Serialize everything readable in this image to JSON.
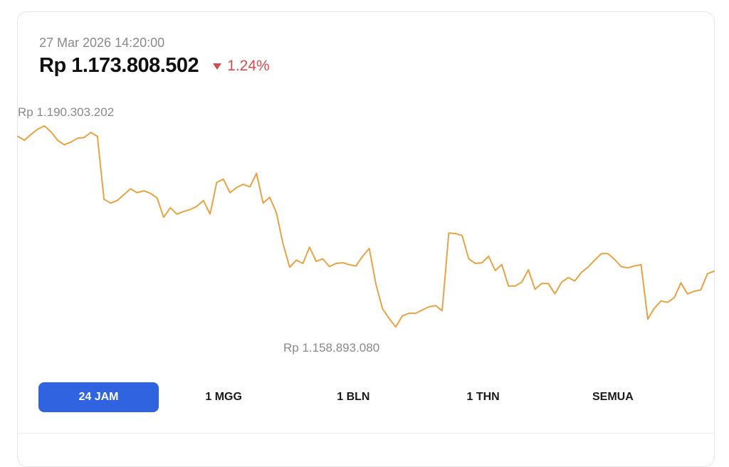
{
  "header": {
    "timestamp": "27 Mar 2026 14:20:00",
    "price": "Rp 1.173.808.502",
    "change": "1.24%",
    "change_direction": "down",
    "change_color": "#d64c4c"
  },
  "ranges": {
    "items": [
      "24 JAM",
      "1 MGG",
      "1 BLN",
      "1 THN",
      "SEMUA"
    ],
    "active": "24 JAM",
    "active_color": "#3063e0"
  },
  "chart_data": {
    "type": "line",
    "line_color": "#e9a244",
    "max_label": "Rp 1.190.303.202",
    "min_label": "Rp 1.158.893.080",
    "ymin": 1158893080,
    "ymax": 1190303202,
    "series": [
      {
        "values": [
          1188600000,
          1188000000,
          1188900000,
          1189700000,
          1190200000,
          1189300000,
          1188000000,
          1187300000,
          1187700000,
          1188300000,
          1188400000,
          1189200000,
          1188600000,
          1178900000,
          1178300000,
          1178700000,
          1179600000,
          1180500000,
          1179900000,
          1180200000,
          1179800000,
          1179100000,
          1176100000,
          1177600000,
          1176600000,
          1177000000,
          1177300000,
          1177800000,
          1178700000,
          1176600000,
          1181500000,
          1182000000,
          1179900000,
          1180700000,
          1181200000,
          1180800000,
          1182900000,
          1178300000,
          1179200000,
          1176800000,
          1172000000,
          1168400000,
          1169500000,
          1169000000,
          1171500000,
          1169300000,
          1169700000,
          1168500000,
          1169000000,
          1169100000,
          1168800000,
          1168600000,
          1170100000,
          1171300000,
          1165800000,
          1162000000,
          1160500000,
          1159200000,
          1160900000,
          1161300000,
          1161300000,
          1161800000,
          1162300000,
          1162500000,
          1161700000,
          1173700000,
          1173600000,
          1173300000,
          1169700000,
          1169000000,
          1169100000,
          1170100000,
          1167900000,
          1168800000,
          1165500000,
          1165500000,
          1166100000,
          1168000000,
          1165000000,
          1165900000,
          1165900000,
          1164300000,
          1166100000,
          1166800000,
          1166300000,
          1167600000,
          1168400000,
          1169500000,
          1170500000,
          1170500000,
          1169600000,
          1168500000,
          1168300000,
          1168600000,
          1168800000,
          1160400000,
          1162100000,
          1163200000,
          1163000000,
          1163700000,
          1166000000,
          1164300000,
          1164700000,
          1164900000,
          1167400000,
          1167800000
        ]
      }
    ]
  }
}
